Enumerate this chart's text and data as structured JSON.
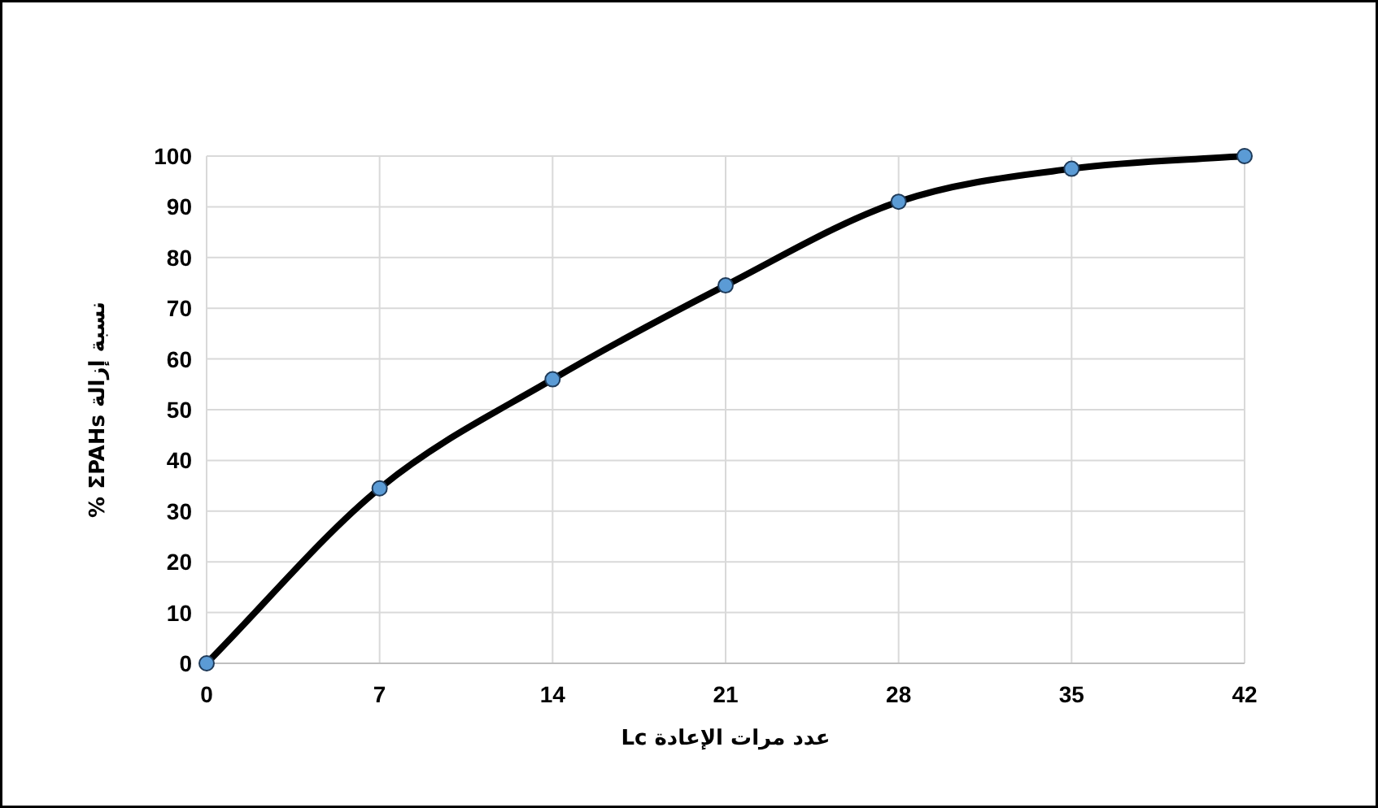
{
  "chart_data": {
    "type": "line",
    "xlabel": "عدد مرات الإعادة Lc",
    "ylabel": "نسبة إزالة ΣPAHs %",
    "x": [
      0,
      7,
      14,
      21,
      28,
      35,
      42
    ],
    "series": [
      {
        "color": "#000000",
        "values": [
          0,
          34.5,
          56,
          74.5,
          91,
          97.5,
          100
        ]
      }
    ],
    "xlim": [
      0,
      42
    ],
    "xticks": [
      0,
      7,
      14,
      21,
      28,
      35,
      42
    ],
    "ylim": [
      0,
      100
    ],
    "yticks": [
      0,
      10,
      20,
      30,
      40,
      50,
      60,
      70,
      80,
      90,
      100
    ],
    "grid": true,
    "marker": "circle",
    "line_style": "solid"
  }
}
